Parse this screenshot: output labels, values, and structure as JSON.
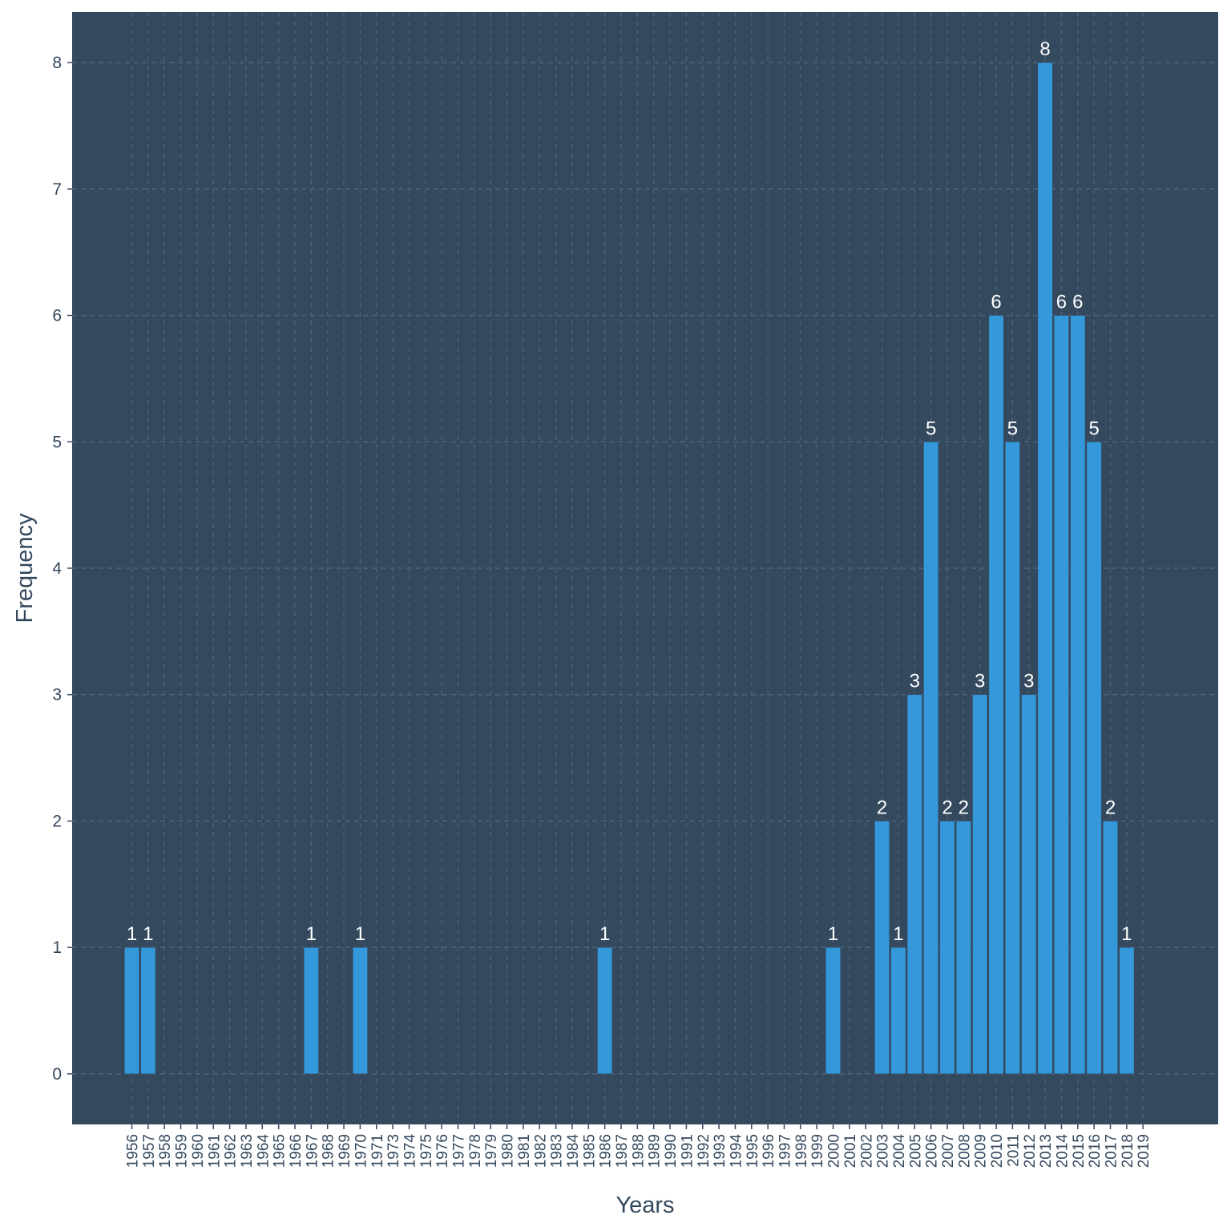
{
  "chart_data": {
    "type": "bar",
    "xlabel": "Years",
    "ylabel": "Frequency",
    "ylim": [
      -0.4,
      8.4
    ],
    "yticks": [
      0,
      1,
      2,
      3,
      4,
      5,
      6,
      7,
      8
    ],
    "grid": true,
    "colors": {
      "panel": "#34495e",
      "bar": "#3498db",
      "bar_outline": "#34495e",
      "grid": "#4d6279",
      "label": "#ffffff",
      "axis_text": "#34495e"
    },
    "categories": [
      "1956",
      "1957",
      "1958",
      "1959",
      "1960",
      "1961",
      "1962",
      "1963",
      "1964",
      "1965",
      "1966",
      "1967",
      "1968",
      "1969",
      "1970",
      "1971",
      "1973",
      "1974",
      "1975",
      "1976",
      "1977",
      "1978",
      "1979",
      "1980",
      "1981",
      "1982",
      "1983",
      "1984",
      "1985",
      "1986",
      "1987",
      "1988",
      "1989",
      "1990",
      "1991",
      "1992",
      "1993",
      "1994",
      "1995",
      "1996",
      "1997",
      "1998",
      "1999",
      "2000",
      "2001",
      "2002",
      "2003",
      "2004",
      "2005",
      "2006",
      "2007",
      "2008",
      "2009",
      "2010",
      "2011",
      "2012",
      "2013",
      "2014",
      "2015",
      "2016",
      "2017",
      "2018",
      "2019"
    ],
    "values": [
      1,
      1,
      0,
      0,
      0,
      0,
      0,
      0,
      0,
      0,
      0,
      1,
      0,
      0,
      1,
      0,
      0,
      0,
      0,
      0,
      0,
      0,
      0,
      0,
      0,
      0,
      0,
      0,
      0,
      1,
      0,
      0,
      0,
      0,
      0,
      0,
      0,
      0,
      0,
      0,
      0,
      0,
      0,
      1,
      0,
      0,
      2,
      1,
      3,
      5,
      2,
      2,
      3,
      6,
      5,
      3,
      8,
      6,
      6,
      5,
      2,
      1,
      0
    ]
  }
}
